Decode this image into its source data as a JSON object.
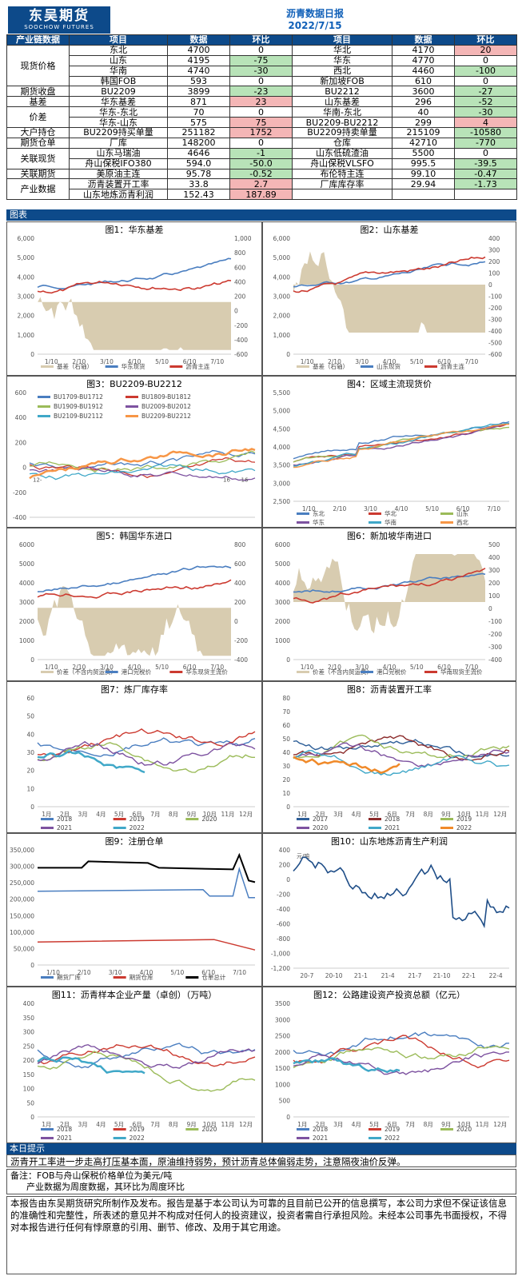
{
  "header": {
    "logo_cn": "东吴期货",
    "logo_en": "SOOCHOW FUTURES",
    "title": "沥青数据日报",
    "date": "2022/7/15"
  },
  "table": {
    "headers": [
      "产业链数据",
      "项目",
      "数据",
      "环比",
      "项目",
      "数据",
      "环比"
    ],
    "rows": [
      [
        "现货价格",
        "东北",
        "4700",
        "0",
        "华北",
        "4170",
        "20"
      ],
      [
        "",
        "山东",
        "4195",
        "-75",
        "华东",
        "4770",
        "0"
      ],
      [
        "",
        "华南",
        "4740",
        "-30",
        "西北",
        "4460",
        "-100"
      ],
      [
        "",
        "韩国FOB",
        "593",
        "0",
        "新加坡FOB",
        "610",
        "0"
      ],
      [
        "期货收盘",
        "BU2209",
        "3899",
        "-23",
        "BU2212",
        "3600",
        "-27"
      ],
      [
        "基差",
        "华东基差",
        "871",
        "23",
        "山东基差",
        "296",
        "-52"
      ],
      [
        "价差",
        "华东-东北",
        "70",
        "0",
        "华南-东北",
        "40",
        "-30"
      ],
      [
        "",
        "华东-山东",
        "575",
        "75",
        "BU2209-BU2212",
        "299",
        "4"
      ],
      [
        "大户持仓",
        "BU2209持买单量",
        "251182",
        "1752",
        "BU2209持卖单量",
        "215109",
        "-10580"
      ],
      [
        "期货仓单",
        "厂库",
        "148200",
        "0",
        "仓库",
        "42710",
        "-770"
      ],
      [
        "关联现货",
        "山东马瑞油",
        "4646",
        "-1",
        "山东低硫渣油",
        "5500",
        "0"
      ],
      [
        "",
        "舟山保税IFO380",
        "594.0",
        "-50.0",
        "舟山保税VLSFO",
        "995.5",
        "-39.5"
      ],
      [
        "关联期货",
        "美原油主连",
        "95.78",
        "-0.52",
        "布伦特主连",
        "99.10",
        "-0.47"
      ],
      [
        "产业数据",
        "沥青装置开工率",
        "33.8",
        "2.7",
        "厂库库存率",
        "29.94",
        "-1.73"
      ],
      [
        "",
        "山东地炼沥青利润",
        "152.43",
        "187.89",
        "",
        "",
        ""
      ]
    ]
  },
  "section_charts": "图表",
  "charts": [
    {
      "title": "图1：华东基差",
      "x": [
        "1/10",
        "2/10",
        "3/10",
        "4/10",
        "5/10",
        "6/10",
        "7/10"
      ],
      "yl": [
        "6,000",
        "5,000",
        "4,000",
        "3,000",
        "2,000",
        "1,000",
        "0"
      ],
      "yr": [
        "1,000",
        "800",
        "600",
        "400",
        "200",
        "0",
        "-200",
        "-400",
        "-600"
      ],
      "legend": [
        "基差（右轴）",
        "华东现货",
        "沥青主连"
      ],
      "colors": [
        "#d8ccb0",
        "#4a7ec0",
        "#cc3a30"
      ]
    },
    {
      "title": "图2：山东基差",
      "x": [
        "1/10",
        "2/10",
        "3/10",
        "4/10",
        "5/10",
        "6/10",
        "7/10"
      ],
      "yl": [
        "6,000",
        "5,000",
        "4,000",
        "3,000",
        "2,000",
        "1,000",
        "0"
      ],
      "yr": [
        "400",
        "300",
        "200",
        "100",
        "0",
        "-100",
        "-200",
        "-300",
        "-400",
        "-500",
        "-600"
      ],
      "legend": [
        "基差（右轴）",
        "山东现货",
        "沥青主连"
      ],
      "colors": [
        "#d8ccb0",
        "#4a7ec0",
        "#cc3a30"
      ]
    },
    {
      "title": "图3：BU2209-BU2212",
      "yl": [
        "600",
        "400",
        "200",
        "0",
        "-200",
        "-400"
      ],
      "legend": [
        "BU1709-BU1712",
        "BU1809-BU1812",
        "BU1909-BU1912",
        "BU2009-BU2012",
        "BU2109-BU2112",
        "BU2209-BU2212"
      ],
      "colors": [
        "#4a7ec0",
        "#cc3a30",
        "#9bbb59",
        "#7d52a0",
        "#40a8c8",
        "#f79646"
      ],
      "xl": [
        "12-",
        "16",
        "-16"
      ]
    },
    {
      "title": "图4：区域主流现货价",
      "x": [
        "1/10",
        "2/10",
        "3/10",
        "4/10",
        "5/10",
        "6/10",
        "7/10"
      ],
      "yl": [
        "5,500",
        "5,000",
        "4,500",
        "4,000",
        "3,500",
        "3,000",
        "2,500"
      ],
      "legend": [
        "东北",
        "华北",
        "山东",
        "华东",
        "华南",
        "西北"
      ],
      "colors": [
        "#4a7ec0",
        "#cc3a30",
        "#9bbb59",
        "#7d52a0",
        "#40a8c8",
        "#f79646"
      ]
    },
    {
      "title": "图5：韩国华东进口",
      "x": [
        "1/10",
        "2/10",
        "3/10",
        "4/10",
        "5/10",
        "6/10",
        "7/10"
      ],
      "yl": [
        "6000",
        "5000",
        "4000",
        "3000",
        "2000",
        "1000",
        "0"
      ],
      "yr": [
        "800",
        "600",
        "400",
        "200",
        "0",
        "-200",
        "-400"
      ],
      "legend": [
        "价差（不含内贸运费）",
        "港口完税价",
        "华东现货主流价"
      ],
      "colors": [
        "#d8ccb0",
        "#4a7ec0",
        "#cc3a30"
      ]
    },
    {
      "title": "图6：新加坡华南进口",
      "x": [
        "1/10",
        "2/10",
        "3/10",
        "4/10",
        "5/10",
        "6/10",
        "7/10"
      ],
      "yl": [
        "6000",
        "5000",
        "4000",
        "3000",
        "2000",
        "1000",
        "0"
      ],
      "yr": [
        "500",
        "400",
        "300",
        "200",
        "100",
        "0",
        "-100",
        "-200",
        "-300",
        "-400"
      ],
      "legend": [
        "价差（不含内贸运费）",
        "港口完税价",
        "华南现货主流价"
      ],
      "colors": [
        "#d8ccb0",
        "#4a7ec0",
        "#cc3a30"
      ]
    },
    {
      "title": "图7：炼厂库存率",
      "x": [
        "1月",
        "2月",
        "3月",
        "4月",
        "5月",
        "6月",
        "7月",
        "8月",
        "9月",
        "10月",
        "11月",
        "12月"
      ],
      "yl": [
        "60",
        "50",
        "40",
        "30",
        "20",
        "10",
        "0"
      ],
      "legend": [
        "2018",
        "2019",
        "2020",
        "2021",
        "2022"
      ],
      "colors": [
        "#4a7ec0",
        "#cc3a30",
        "#9bbb59",
        "#7d52a0",
        "#40a8c8"
      ]
    },
    {
      "title": "图8：沥青装置开工率",
      "x": [
        "1月",
        "2月",
        "3月",
        "4月",
        "5月",
        "6月",
        "7月",
        "8月",
        "9月",
        "10月",
        "11月",
        "12月"
      ],
      "yl": [
        "80",
        "70",
        "60",
        "50",
        "40",
        "30",
        "20",
        "10",
        "0"
      ],
      "legend": [
        "2017",
        "2018",
        "2019",
        "2020",
        "2021",
        "2022"
      ],
      "colors": [
        "#2e5f98",
        "#8b2a2a",
        "#9bbb59",
        "#7d52a0",
        "#40a8c8",
        "#f08a2a"
      ]
    },
    {
      "title": "图9：注册仓单",
      "x": [
        "1/10",
        "2/10",
        "3/10",
        "4/10",
        "5/10",
        "6/10",
        "7/10"
      ],
      "yl": [
        "350,000",
        "300,000",
        "250,000",
        "200,000",
        "150,000",
        "100,000",
        "50,000",
        "0"
      ],
      "legend": [
        "期货厂库",
        "期货仓库",
        "仓单总计"
      ],
      "colors": [
        "#4a7ec0",
        "#cc3a30",
        "#000000"
      ]
    },
    {
      "title": "图10：山东地炼沥青生产利润",
      "x": [
        "20-7",
        "20-10",
        "21-1",
        "21-4",
        "21-7",
        "21-10",
        "22-1",
        "22-4"
      ],
      "yl": [
        "400",
        "200",
        "0",
        "-200",
        "-400",
        "-600",
        "-800",
        "-1,000",
        "-1,200"
      ],
      "unit": "元/吨"
    },
    {
      "title": "图11：沥青样本企业产量（卓创）（万吨）",
      "x": [
        "1月",
        "2月",
        "3月",
        "4月",
        "5月",
        "6月",
        "7月",
        "8月",
        "9月",
        "10月",
        "11月",
        "12月"
      ],
      "yl": [
        "400",
        "350",
        "300",
        "250",
        "200",
        "150",
        "100",
        "50",
        "0"
      ],
      "legend": [
        "2018",
        "2019",
        "2020",
        "2021",
        "2022"
      ],
      "colors": [
        "#4a7ec0",
        "#cc3a30",
        "#9bbb59",
        "#7d52a0",
        "#40a8c8"
      ]
    },
    {
      "title": "图12：公路建设资产投资总额（亿元）",
      "x": [
        "1月",
        "2月",
        "3月",
        "4月",
        "5月",
        "6月",
        "7月",
        "8月",
        "9月",
        "10月",
        "11月",
        "12月"
      ],
      "yl": [
        "3500",
        "3000",
        "2500",
        "2000",
        "1500",
        "1000",
        "500",
        "0"
      ],
      "legend": [
        "2018",
        "2019",
        "2020",
        "2021",
        "2022"
      ],
      "colors": [
        "#4a7ec0",
        "#cc3a30",
        "#9bbb59",
        "#7d52a0",
        "#40a8c8"
      ]
    }
  ],
  "tips": {
    "label": "本日提示",
    "text": "沥青开工率进一步走高打压基本面，原油维持弱势，预计沥青总体偏弱走势，注意隔夜油价反弹。"
  },
  "remarks": {
    "l1": "备注：FOB与舟山保税价格单位为美元/吨",
    "l2": "产业数据为周度数据，其环比为周度环比"
  },
  "disclaimer": "本报告由东吴期货研究所制作及发布。报告是基于本公司认为可靠的且目前已公开的信息撰写，本公司力求但不保证该信息的准确性和完整性，所表述的意见并不构成对任何人的投资建议，投资者需自行承担风险。未经本公司事先书面授权，不得对本报告进行任何有悖原意的引用、删节、修改、及用于其它用途。"
}
